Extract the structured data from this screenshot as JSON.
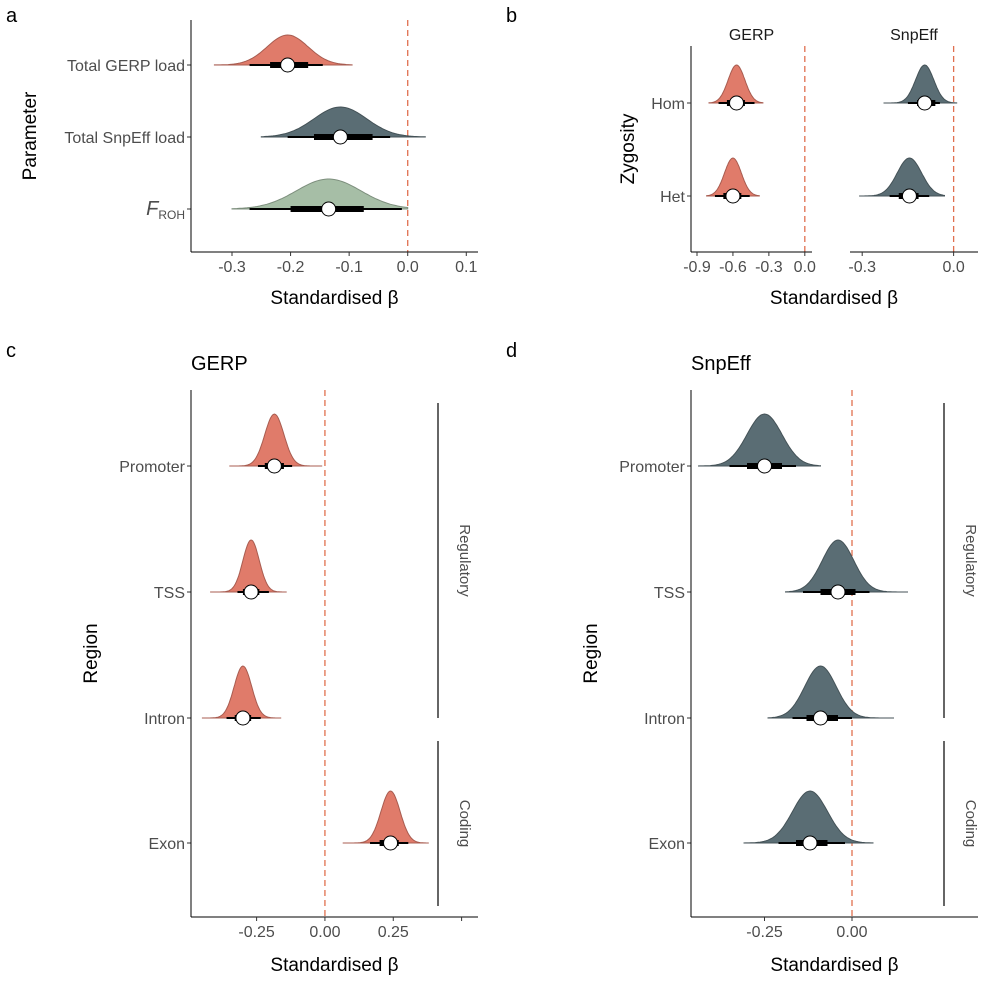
{
  "chart_data": [
    {
      "panel": "a",
      "type": "halfeye",
      "xlabel": "Standardised β",
      "ylabel": "Parameter",
      "xlim": [
        -0.37,
        0.12
      ],
      "xticks": [
        -0.3,
        -0.2,
        -0.1,
        0.0,
        0.1
      ],
      "xtick_labels": [
        "-0.3",
        "-0.2",
        "-0.1",
        "0.0",
        "0.1"
      ],
      "reference_line": 0,
      "categories": [
        {
          "label": "Total GERP load",
          "label_sub": "",
          "color": "#e07b6a",
          "median": -0.205,
          "inner": [
            -0.235,
            -0.17
          ],
          "outer": [
            -0.27,
            -0.145
          ],
          "range": [
            -0.33,
            -0.095
          ],
          "sd": 0.035
        },
        {
          "label": "Total SnpEff load",
          "label_sub": "",
          "color": "#5a6d74",
          "median": -0.115,
          "inner": [
            -0.16,
            -0.06
          ],
          "outer": [
            -0.205,
            -0.03
          ],
          "range": [
            -0.25,
            0.03
          ],
          "sd": 0.045
        },
        {
          "label": "F",
          "label_sub": "ROH",
          "color": "#a6bea6",
          "median": -0.135,
          "inner": [
            -0.2,
            -0.075
          ],
          "outer": [
            -0.27,
            -0.01
          ],
          "range": [
            -0.3,
            0.0
          ],
          "sd": 0.055
        }
      ]
    },
    {
      "panel": "b",
      "type": "halfeye",
      "xlabel": "Standardised β",
      "ylabel": "Zygosity",
      "reference_line": 0,
      "categories": [
        "Hom",
        "Het"
      ],
      "facets": [
        {
          "name": "GERP",
          "xlim": [
            -0.95,
            0.06
          ],
          "xticks": [
            -0.9,
            -0.6,
            -0.3,
            0.0
          ],
          "xtick_labels": [
            "-0.9",
            "-0.6",
            "-0.3",
            "0.0"
          ],
          "color": "#e07b6a",
          "rows": [
            {
              "category": "Hom",
              "median": -0.57,
              "inner": [
                -0.65,
                -0.5
              ],
              "outer": [
                -0.72,
                -0.42
              ],
              "range": [
                -0.8,
                -0.35
              ],
              "sd": 0.07
            },
            {
              "category": "Het",
              "median": -0.6,
              "inner": [
                -0.68,
                -0.53
              ],
              "outer": [
                -0.75,
                -0.46
              ],
              "range": [
                -0.82,
                -0.38
              ],
              "sd": 0.07
            }
          ]
        },
        {
          "name": "SnpEff",
          "xlim": [
            -0.34,
            0.08
          ],
          "xticks": [
            -0.3,
            0.0
          ],
          "xtick_labels": [
            "-0.3",
            "0.0"
          ],
          "color": "#5a6d74",
          "rows": [
            {
              "category": "Hom",
              "median": -0.095,
              "inner": [
                -0.12,
                -0.06
              ],
              "outer": [
                -0.15,
                -0.045
              ],
              "range": [
                -0.23,
                0.01
              ],
              "sd": 0.03
            },
            {
              "category": "Het",
              "median": -0.145,
              "inner": [
                -0.18,
                -0.115
              ],
              "outer": [
                -0.21,
                -0.08
              ],
              "range": [
                -0.31,
                -0.03
              ],
              "sd": 0.04
            }
          ]
        }
      ]
    },
    {
      "panel": "c",
      "type": "halfeye",
      "title": "GERP",
      "xlabel": "Standardised β",
      "ylabel": "Region",
      "xlim": [
        -0.49,
        0.56
      ],
      "xticks": [
        -0.25,
        0.0,
        0.25
      ],
      "xtick_labels": [
        "-0.25",
        "0.00",
        "0.25"
      ],
      "extra_tick": 0.5,
      "reference_line": 0,
      "color": "#e07b6a",
      "categories": [
        {
          "label": "Promoter",
          "median": -0.185,
          "inner": [
            -0.22,
            -0.15
          ],
          "outer": [
            -0.245,
            -0.12
          ],
          "range": [
            -0.35,
            -0.01
          ],
          "sd": 0.035
        },
        {
          "label": "TSS",
          "median": -0.27,
          "inner": [
            -0.3,
            -0.24
          ],
          "outer": [
            -0.32,
            -0.205
          ],
          "range": [
            -0.42,
            -0.14
          ],
          "sd": 0.03
        },
        {
          "label": "Intron",
          "median": -0.3,
          "inner": [
            -0.33,
            -0.27
          ],
          "outer": [
            -0.36,
            -0.235
          ],
          "range": [
            -0.45,
            -0.16
          ],
          "sd": 0.032
        },
        {
          "label": "Exon",
          "median": 0.24,
          "inner": [
            0.2,
            0.27
          ],
          "outer": [
            0.165,
            0.305
          ],
          "range": [
            0.065,
            0.38
          ],
          "sd": 0.035
        }
      ],
      "groups": [
        {
          "label": "Regulatory",
          "members": [
            "Promoter",
            "TSS",
            "Intron"
          ]
        },
        {
          "label": "Coding",
          "members": [
            "Exon"
          ]
        }
      ]
    },
    {
      "panel": "d",
      "type": "halfeye",
      "title": "SnpEff",
      "xlabel": "Standardised β",
      "ylabel": "Region",
      "xlim": [
        -0.46,
        0.36
      ],
      "xticks": [
        -0.25,
        0.0
      ],
      "xtick_labels": [
        "-0.25",
        "0.00"
      ],
      "reference_line": 0,
      "color": "#5a6d74",
      "categories": [
        {
          "label": "Promoter",
          "median": -0.25,
          "inner": [
            -0.3,
            -0.2
          ],
          "outer": [
            -0.35,
            -0.16
          ],
          "range": [
            -0.44,
            -0.09
          ],
          "sd": 0.05
        },
        {
          "label": "TSS",
          "median": -0.04,
          "inner": [
            -0.09,
            0.01
          ],
          "outer": [
            -0.14,
            0.05
          ],
          "range": [
            -0.19,
            0.16
          ],
          "sd": 0.045
        },
        {
          "label": "Intron",
          "median": -0.09,
          "inner": [
            -0.13,
            -0.04
          ],
          "outer": [
            -0.17,
            0.0
          ],
          "range": [
            -0.24,
            0.12
          ],
          "sd": 0.045
        },
        {
          "label": "Exon",
          "median": -0.12,
          "inner": [
            -0.16,
            -0.07
          ],
          "outer": [
            -0.21,
            -0.02
          ],
          "range": [
            -0.31,
            0.06
          ],
          "sd": 0.05
        }
      ],
      "groups": [
        {
          "label": "Regulatory",
          "members": [
            "Promoter",
            "TSS",
            "Intron"
          ]
        },
        {
          "label": "Coding",
          "members": [
            "Exon"
          ]
        }
      ]
    }
  ]
}
